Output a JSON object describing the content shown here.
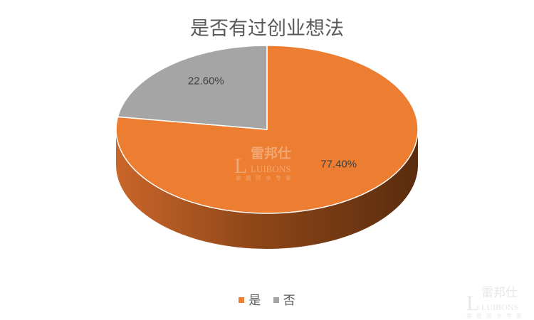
{
  "chart_data": {
    "type": "pie",
    "style": "3d",
    "title": "是否有过创业想法",
    "categories": [
      "是",
      "否"
    ],
    "values": [
      77.4,
      22.6
    ],
    "data_labels": [
      "77.40%",
      "22.60%"
    ],
    "colors": [
      "#ED7D31",
      "#A5A5A5"
    ],
    "legend_position": "bottom"
  },
  "watermark": {
    "brand_cn": "雷邦仕",
    "brand_en": "LUIBONS",
    "slogan": "家庭防水专家"
  }
}
